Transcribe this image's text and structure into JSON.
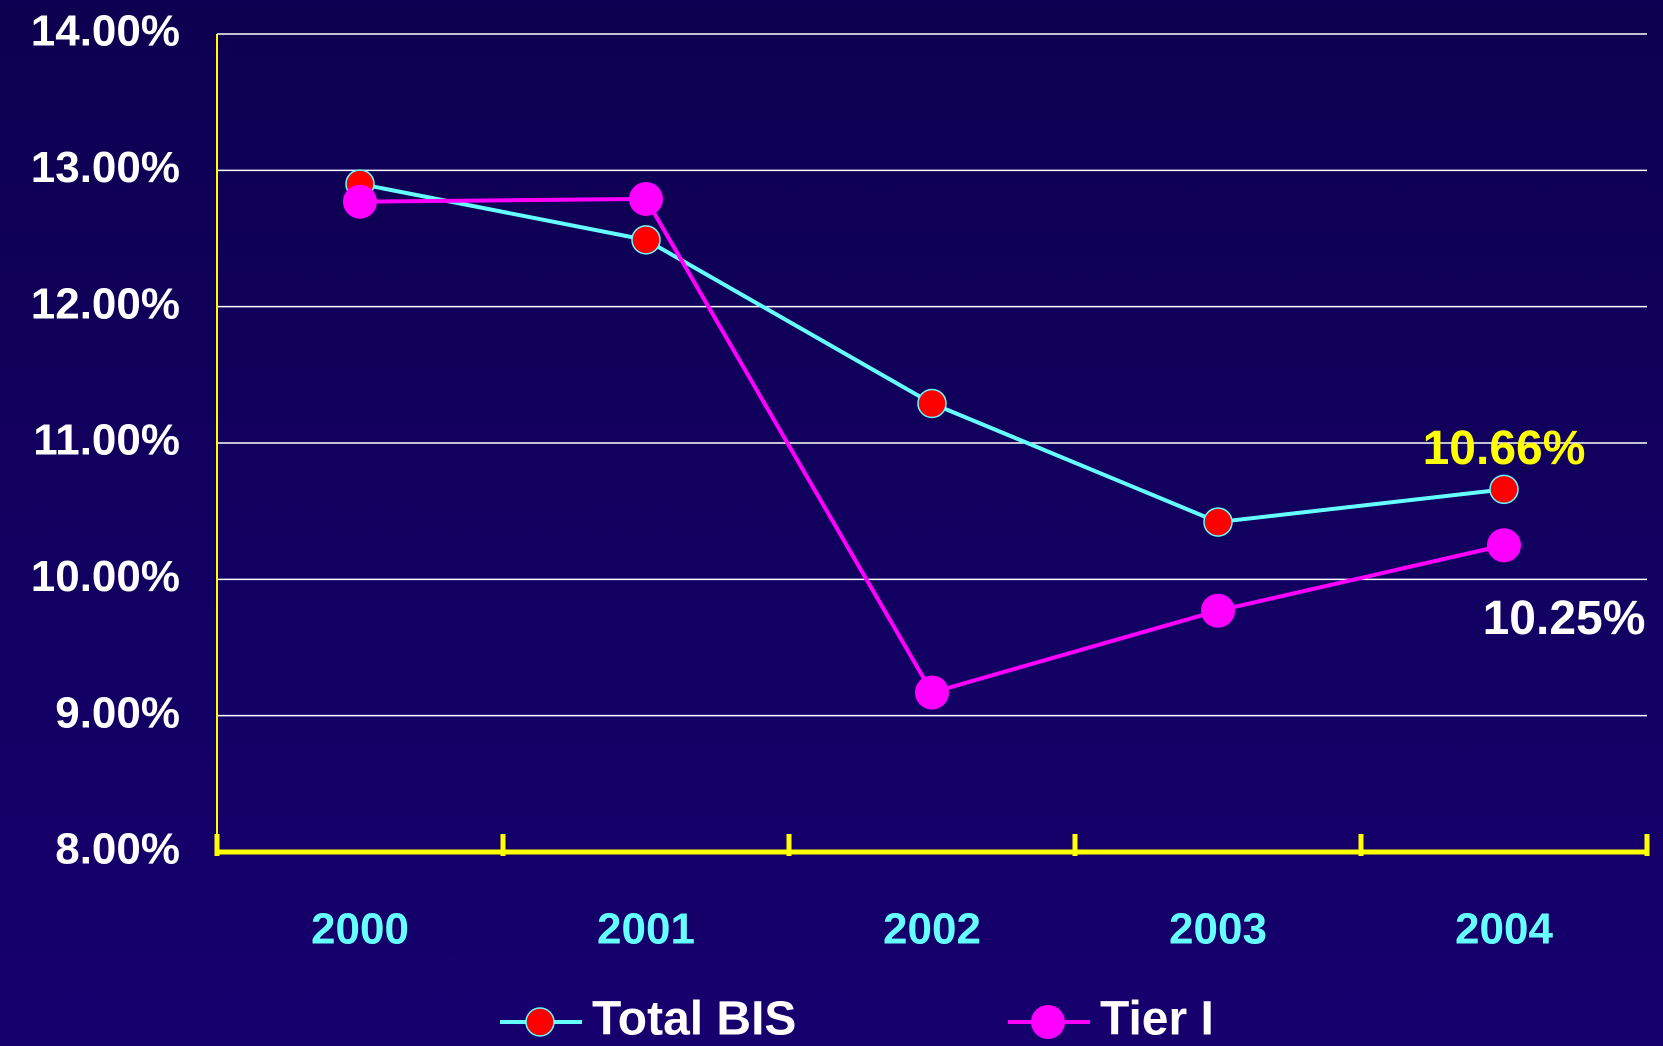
{
  "chart_data": {
    "type": "line",
    "categories": [
      "2000",
      "2001",
      "2002",
      "2003",
      "2004"
    ],
    "series": [
      {
        "name": "Total BIS",
        "color": "#66ffff",
        "marker_color": "#ff0000",
        "values": [
          12.9,
          12.49,
          11.29,
          10.42,
          10.66
        ],
        "value_labels": [
          null,
          null,
          null,
          null,
          "10.66%"
        ],
        "label_color": "#ffff00"
      },
      {
        "name": "Tier I",
        "color": "#ff00ff",
        "marker_color": "#ff00ff",
        "values": [
          12.77,
          12.79,
          9.17,
          9.77,
          10.25
        ],
        "value_labels": [
          null,
          null,
          null,
          null,
          "10.25%"
        ],
        "label_color": "#ffffff"
      }
    ],
    "ylim": [
      8,
      14
    ],
    "yticks": [
      {
        "value": 8,
        "label": "8.00%"
      },
      {
        "value": 9,
        "label": "9.00%"
      },
      {
        "value": 10,
        "label": "10.00%"
      },
      {
        "value": 11,
        "label": "11.00%"
      },
      {
        "value": 12,
        "label": "12.00%"
      },
      {
        "value": 13,
        "label": "13.00%"
      },
      {
        "value": 14,
        "label": "14.00%"
      }
    ],
    "grid": true,
    "legend": "bottom"
  }
}
